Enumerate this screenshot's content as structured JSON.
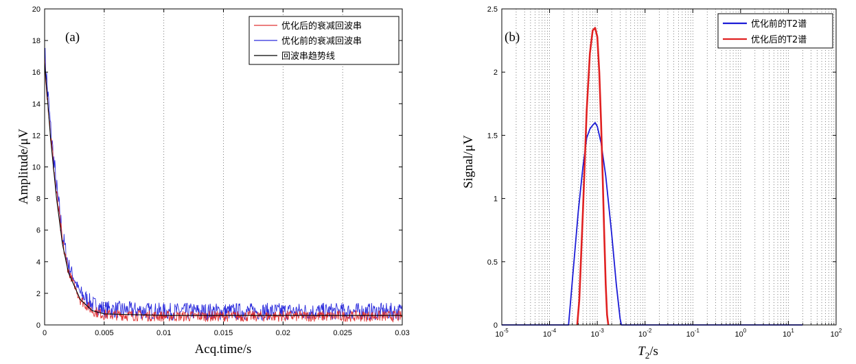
{
  "chart_data": [
    {
      "type": "line",
      "panel_label": "(a)",
      "xlabel": "Acq.time/s",
      "ylabel": "Amplitude/μV",
      "xlim": [
        0,
        0.03
      ],
      "ylim": [
        0,
        20
      ],
      "xticks": [
        "0",
        "0.005",
        "0.01",
        "0.015",
        "0.02",
        "0.025",
        "0.03"
      ],
      "yticks": [
        "0",
        "2",
        "4",
        "6",
        "8",
        "10",
        "12",
        "14",
        "16",
        "18",
        "20"
      ],
      "grid": "vertical dotted",
      "legend_position": "top-right",
      "series": [
        {
          "name": "优化后的衰减回波串",
          "color": "#e03030",
          "style": "noisy-decay",
          "x": [
            0,
            0.0005,
            0.001,
            0.0015,
            0.002,
            0.003,
            0.004,
            0.005,
            0.01,
            0.02,
            0.03
          ],
          "values": [
            16.8,
            12.0,
            8.2,
            5.2,
            3.4,
            1.6,
            0.9,
            0.65,
            0.55,
            0.55,
            0.55
          ],
          "noise": 0.35
        },
        {
          "name": "优化前的衰减回波串",
          "color": "#2a2adc",
          "style": "noisy-decay",
          "x": [
            0,
            0.0005,
            0.001,
            0.0015,
            0.002,
            0.003,
            0.004,
            0.005,
            0.01,
            0.02,
            0.03
          ],
          "values": [
            17.2,
            12.4,
            8.6,
            5.6,
            3.8,
            2.0,
            1.3,
            1.0,
            0.85,
            0.85,
            0.85
          ],
          "noise": 0.55
        },
        {
          "name": "回波串趋势线",
          "color": "#000000",
          "style": "trend",
          "x": [
            0,
            0.0005,
            0.001,
            0.0015,
            0.002,
            0.003,
            0.004,
            0.005,
            0.01,
            0.02,
            0.03
          ],
          "values": [
            16.6,
            11.8,
            8.0,
            5.1,
            3.3,
            1.6,
            0.9,
            0.7,
            0.6,
            0.6,
            0.6
          ]
        }
      ]
    },
    {
      "type": "line",
      "panel_label": "(b)",
      "xlabel_main": "T",
      "xlabel_sub": "2",
      "xlabel_rest": "/s",
      "ylabel": "Signal/μV",
      "xscale": "log",
      "xlim": [
        1e-05,
        100
      ],
      "ylim": [
        0,
        2.5
      ],
      "xtick_mantissas": [
        "10",
        "10",
        "10",
        "10",
        "10",
        "10",
        "10",
        "10"
      ],
      "xtick_exponents": [
        "-5",
        "-4",
        "-3",
        "-2",
        "-1",
        "0",
        "1",
        "2"
      ],
      "xtick_values": [
        1e-05,
        0.0001,
        0.001,
        0.01,
        0.1,
        1,
        10,
        100
      ],
      "yticks": [
        "0",
        "0.5",
        "1",
        "1.5",
        "2",
        "2.5"
      ],
      "ytick_values": [
        0,
        0.5,
        1,
        1.5,
        2,
        2.5
      ],
      "grid": "vertical dotted log minor",
      "legend_position": "top-right",
      "series": [
        {
          "name": "优化前的T2谱",
          "color": "#1a1ad6",
          "x": [
            1e-05,
            0.00025,
            0.0003,
            0.0004,
            0.0005,
            0.0006,
            0.0007,
            0.0008,
            0.0009,
            0.001,
            0.0012,
            0.0015,
            0.002,
            0.0025,
            0.003,
            0.0032,
            0.004,
            20
          ],
          "values": [
            0,
            0,
            0.35,
            0.9,
            1.25,
            1.48,
            1.55,
            1.58,
            1.6,
            1.57,
            1.44,
            1.18,
            0.72,
            0.32,
            0.05,
            0,
            0,
            0
          ]
        },
        {
          "name": "优化后的T2谱",
          "color": "#e02020",
          "x": [
            0.00038,
            0.00042,
            0.0005,
            0.0006,
            0.0007,
            0.0008,
            0.0009,
            0.001,
            0.0011,
            0.0012,
            0.0013,
            0.0014,
            0.0015,
            0.0016,
            0.0017
          ],
          "values": [
            0,
            0.2,
            0.9,
            1.7,
            2.15,
            2.33,
            2.35,
            2.28,
            2.0,
            1.6,
            1.15,
            0.7,
            0.32,
            0.08,
            0
          ]
        }
      ]
    }
  ]
}
